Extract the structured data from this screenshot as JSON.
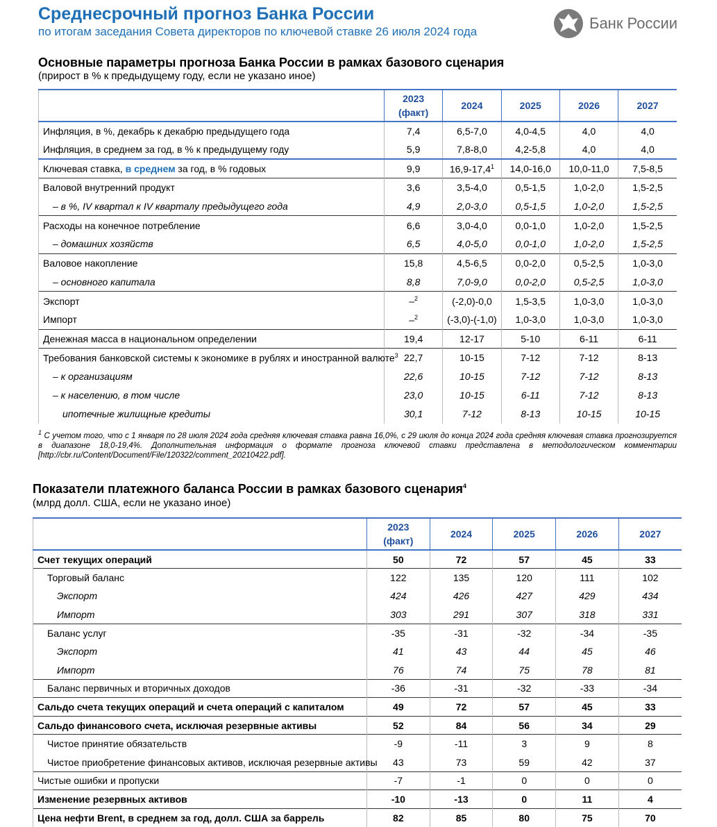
{
  "header": {
    "title": "Среднесрочный прогноз Банка России",
    "subtitle": "по итогам заседания Совета директоров по ключевой ставке 26 июля 2024 года",
    "logo_text": "Банк России"
  },
  "table1": {
    "title": "Основные параметры прогноза Банка России в рамках базового сценария",
    "subtitle": "(прирост в % к предыдущему году, если не указано иное)",
    "columns": [
      "2023",
      "2024",
      "2025",
      "2026",
      "2027"
    ],
    "first_column_note": "(факт)",
    "groups": [
      {
        "rows": [
          {
            "label": "Инфляция, в %, декабрь к декабрю предыдущего года",
            "values": [
              "7,4",
              "6,5-7,0",
              "4,0-4,5",
              "4,0",
              "4,0"
            ]
          },
          {
            "label": "Инфляция, в среднем за год, в % к предыдущему году",
            "values": [
              "5,9",
              "7,8-8,0",
              "4,2-5,8",
              "4,0",
              "4,0"
            ]
          }
        ]
      },
      {
        "rows": [
          {
            "label": "Ключевая ставка, ",
            "link": "в среднем",
            "label_after": " за год, в % годовых",
            "values": [
              "9,9",
              {
                "text": "16,9-17,4",
                "sup": "1"
              },
              "14,0-16,0",
              "10,0-11,0",
              "7,5-8,5"
            ]
          }
        ]
      },
      {
        "rows": [
          {
            "label": "Валовой внутренний продукт",
            "values": [
              "3,6",
              "3,5-4,0",
              "0,5-1,5",
              "1,0-2,0",
              "1,5-2,5"
            ]
          },
          {
            "label": "– в %, IV квартал к IV кварталу предыдущего года",
            "italic": true,
            "indent": 1,
            "values": [
              "4,9",
              "2,0-3,0",
              "0,5-1,5",
              "1,0-2,0",
              "1,5-2,5"
            ]
          }
        ]
      },
      {
        "rows": [
          {
            "label": "Расходы на конечное потребление",
            "values": [
              "6,6",
              "3,0-4,0",
              "0,0-1,0",
              "1,0-2,0",
              "1,5-2,5"
            ]
          },
          {
            "label": "– домашних хозяйств",
            "italic": true,
            "indent": 1,
            "values": [
              "6,5",
              "4,0-5,0",
              "0,0-1,0",
              "1,0-2,0",
              "1,5-2,5"
            ]
          }
        ]
      },
      {
        "rows": [
          {
            "label": "Валовое накопление",
            "values": [
              "15,8",
              "4,5-6,5",
              "0,0-2,0",
              "0,5-2,5",
              "1,0-3,0"
            ]
          },
          {
            "label": "– основного капитала",
            "italic": true,
            "indent": 1,
            "values": [
              "8,8",
              "7,0-9,0",
              "0,0-2,0",
              "0,5-2,5",
              "1,0-3,0"
            ]
          }
        ]
      },
      {
        "rows": [
          {
            "label": "Экспорт",
            "values": [
              {
                "text": "–",
                "sup": "2"
              },
              "(-2,0)-0,0",
              "1,5-3,5",
              "1,0-3,0",
              "1,0-3,0"
            ]
          },
          {
            "label": "Импорт",
            "values": [
              {
                "text": "–",
                "sup": "2"
              },
              "(-3,0)-(-1,0)",
              "1,0-3,0",
              "1,0-3,0",
              "1,0-3,0"
            ]
          }
        ]
      },
      {
        "rows": [
          {
            "label": "Денежная масса в национальном определении",
            "values": [
              "19,4",
              "12-17",
              "5-10",
              "6-11",
              "6-11"
            ]
          }
        ]
      },
      {
        "rows": [
          {
            "label": "Требования банковской системы к экономике в рублях и иностранной валюте",
            "label_sup": "3",
            "values": [
              "22,7",
              "10-15",
              "7-12",
              "7-12",
              "8-13"
            ]
          },
          {
            "label": "– к организациям",
            "italic": true,
            "indent": 1,
            "values": [
              "22,6",
              "10-15",
              "7-12",
              "7-12",
              "8-13"
            ]
          },
          {
            "label": "– к населению, в том числе",
            "italic": true,
            "indent": 1,
            "values": [
              "23,0",
              "10-15",
              "6-11",
              "7-12",
              "8-13"
            ]
          },
          {
            "label": "ипотечные жилищные кредиты",
            "italic": true,
            "indent": 2,
            "values": [
              "30,1",
              "7-12",
              "8-13",
              "10-15",
              "10-15"
            ]
          }
        ]
      }
    ],
    "footnote": {
      "mark": "1",
      "text": "С учетом того, что с 1 января по 28 июля 2024 года средняя ключевая ставка равна 16,0%, с 29 июля до конца 2024 года средняя ключевая ставка прогнозируется в диапазоне 18,0-19,4%. Дополнительная информация о формате прогноза ключевой ставки представлена в методологическом комментарии [",
      "link": "http://cbr.ru/Content/Document/File/120322/comment_20210422.pdf",
      "text_after": "]."
    }
  },
  "table2": {
    "title": "Показатели платежного баланса России в рамках базового сценария",
    "title_sup": "4",
    "subtitle": "(млрд долл. США, если не указано иное)",
    "columns": [
      "2023",
      "2024",
      "2025",
      "2026",
      "2027"
    ],
    "first_column_note": "(факт)",
    "groups": [
      {
        "rows": [
          {
            "label": "Счет текущих операций",
            "bold": true,
            "values": [
              50,
              72,
              57,
              45,
              33
            ]
          }
        ]
      },
      {
        "rows": [
          {
            "label": "Торговый баланс",
            "indent": 1,
            "values": [
              122,
              135,
              120,
              111,
              102
            ]
          },
          {
            "label": "Экспорт",
            "italic": true,
            "indent": 2,
            "values": [
              424,
              426,
              427,
              429,
              434
            ]
          },
          {
            "label": "Импорт",
            "italic": true,
            "indent": 2,
            "values": [
              303,
              291,
              307,
              318,
              331
            ]
          }
        ]
      },
      {
        "rows": [
          {
            "label": "Баланс услуг",
            "indent": 1,
            "values": [
              -35,
              -31,
              -32,
              -34,
              -35
            ]
          },
          {
            "label": "Экспорт",
            "italic": true,
            "indent": 2,
            "values": [
              41,
              43,
              44,
              45,
              46
            ]
          },
          {
            "label": "Импорт",
            "italic": true,
            "indent": 2,
            "values": [
              76,
              74,
              75,
              78,
              81
            ]
          }
        ]
      },
      {
        "rows": [
          {
            "label": "Баланс первичных и вторичных доходов",
            "indent": 1,
            "values": [
              -36,
              -31,
              -32,
              -33,
              -34
            ]
          }
        ]
      },
      {
        "rows": [
          {
            "label": "Сальдо счета текущих операций и счета операций с капиталом",
            "bold": true,
            "values": [
              49,
              72,
              57,
              45,
              33
            ]
          }
        ]
      },
      {
        "rows": [
          {
            "label": "Сальдо финансового счета, исключая резервные активы",
            "bold": true,
            "values": [
              52,
              84,
              56,
              34,
              29
            ]
          }
        ]
      },
      {
        "rows": [
          {
            "label": "Чистое принятие обязательств",
            "indent": 1,
            "values": [
              -9,
              -11,
              3,
              9,
              8
            ]
          },
          {
            "label": "Чистое приобретение финансовых активов, исключая резервные активы",
            "indent": 1,
            "values": [
              43,
              73,
              59,
              42,
              37
            ]
          }
        ]
      },
      {
        "rows": [
          {
            "label": "Чистые ошибки и пропуски",
            "values": [
              -7,
              -1,
              0,
              0,
              0
            ]
          }
        ]
      },
      {
        "rows": [
          {
            "label": "Изменение резервных активов",
            "bold": true,
            "values": [
              -10,
              -13,
              0,
              11,
              4
            ]
          }
        ]
      },
      {
        "rows": [
          {
            "label": "Цена нефти Brent, в среднем за год, долл. США за баррель",
            "bold": true,
            "values": [
              82,
              85,
              80,
              75,
              70
            ]
          }
        ]
      }
    ]
  }
}
